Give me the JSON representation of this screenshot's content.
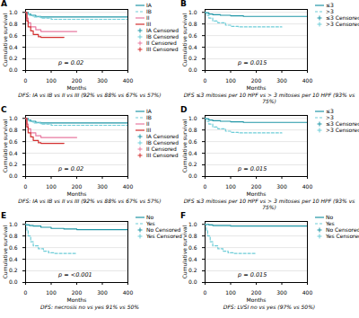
{
  "chart_data": [
    {
      "type": "line",
      "title": "A",
      "subtitle": "DFS: IA vs IB vs II vs III (92% vs 88% vs 67% vs 57%)",
      "annotations": [
        "p = 0.02"
      ],
      "xlabel": "Months",
      "ylabel": "Cumulative survival",
      "xlim": [
        0,
        400
      ],
      "ylim": [
        0,
        1.05
      ],
      "xticks": [
        0,
        100,
        200,
        300,
        400
      ],
      "yticks": [
        {
          "value": 0,
          "label": "0.0"
        },
        0.2,
        0.4,
        0.6,
        0.8,
        {
          "value": 1,
          "label": "1.0"
        }
      ],
      "grid": true,
      "legend": "upper right",
      "series": [
        {
          "name": "IA",
          "type": "step",
          "color": "#2196a6",
          "line_style": "solid",
          "x": [
            0,
            5,
            10,
            20,
            40,
            60,
            100,
            150,
            200,
            250,
            300,
            350,
            400
          ],
          "values": [
            1.0,
            1.0,
            0.97,
            0.95,
            0.93,
            0.92,
            0.92,
            0.92,
            0.92,
            0.92,
            0.92,
            0.92,
            0.92
          ]
        },
        {
          "name": "IB",
          "type": "step",
          "color": "#6ecdd8",
          "line_style": "dashed",
          "x": [
            0,
            5,
            15,
            30,
            60,
            100,
            150,
            200,
            250,
            300,
            350,
            400
          ],
          "values": [
            1.0,
            0.97,
            0.95,
            0.92,
            0.9,
            0.88,
            0.88,
            0.88,
            0.88,
            0.88,
            0.88,
            0.88
          ]
        },
        {
          "name": "II",
          "type": "step",
          "color": "#e879a0",
          "line_style": "solid",
          "x": [
            0,
            5,
            10,
            20,
            40,
            60,
            80,
            100,
            150,
            200
          ],
          "values": [
            1.0,
            0.9,
            0.82,
            0.75,
            0.7,
            0.67,
            0.67,
            0.67,
            0.67,
            0.67
          ]
        },
        {
          "name": "III",
          "type": "step",
          "color": "#d32f2f",
          "line_style": "solid",
          "x": [
            0,
            5,
            10,
            20,
            30,
            50,
            60,
            80,
            100,
            150
          ],
          "values": [
            1.0,
            0.85,
            0.75,
            0.68,
            0.62,
            0.58,
            0.57,
            0.57,
            0.57,
            0.57
          ]
        },
        {
          "name": "IA Censored",
          "type": "scatter",
          "color": "#2196a6",
          "marker": "plus",
          "x": [
            25,
            50,
            70,
            110,
            160,
            210,
            260,
            310,
            360
          ],
          "values": [
            0.95,
            0.93,
            0.92,
            0.92,
            0.92,
            0.92,
            0.92,
            0.92,
            0.92
          ]
        },
        {
          "name": "IB Censored",
          "type": "scatter",
          "color": "#6ecdd8",
          "marker": "plus",
          "x": [
            40,
            90,
            130,
            180,
            230,
            280,
            330,
            380
          ],
          "values": [
            0.92,
            0.9,
            0.88,
            0.88,
            0.88,
            0.88,
            0.88,
            0.88
          ]
        },
        {
          "name": "II Censored",
          "type": "scatter",
          "color": "#e879a0",
          "marker": "plus",
          "x": [
            55,
            120,
            180
          ],
          "values": [
            0.7,
            0.67,
            0.67
          ]
        },
        {
          "name": "III Censored",
          "type": "scatter",
          "color": "#d32f2f",
          "marker": "plus",
          "x": [
            70,
            130
          ],
          "values": [
            0.57,
            0.57
          ]
        }
      ]
    },
    {
      "type": "line",
      "title": "B",
      "subtitle": "DFS ≤3 mitoses per 10 HPF vs > 3 mitoses per 10 HPF (93% vs 75%)",
      "annotations": [
        "p = 0.015"
      ],
      "xlabel": "Months",
      "ylabel": "Cumulative survival",
      "xlim": [
        0,
        400
      ],
      "ylim": [
        0,
        1.05
      ],
      "xticks": [
        0,
        100,
        200,
        300,
        400
      ],
      "yticks": [
        {
          "value": 0,
          "label": "0.0"
        },
        0.2,
        0.4,
        0.6,
        0.8,
        {
          "value": 1,
          "label": "1.0"
        }
      ],
      "grid": true,
      "legend": "upper right",
      "series": [
        {
          "name": "≤3",
          "type": "step",
          "color": "#2196a6",
          "line_style": "solid",
          "x": [
            0,
            5,
            15,
            30,
            60,
            100,
            150,
            200,
            250,
            300,
            350,
            400
          ],
          "values": [
            1.0,
            0.99,
            0.97,
            0.96,
            0.95,
            0.94,
            0.93,
            0.93,
            0.93,
            0.93,
            0.93,
            0.93
          ]
        },
        {
          "name": ">3",
          "type": "step",
          "color": "#6ecdd8",
          "line_style": "dashed",
          "x": [
            0,
            5,
            15,
            30,
            50,
            80,
            100,
            130,
            160,
            200,
            250,
            300
          ],
          "values": [
            1.0,
            0.95,
            0.9,
            0.85,
            0.82,
            0.78,
            0.76,
            0.75,
            0.75,
            0.75,
            0.75,
            0.75
          ]
        },
        {
          "name": "≤3 Censored",
          "type": "scatter",
          "color": "#2196a6",
          "marker": "plus",
          "x": [
            40,
            80,
            130,
            180,
            230,
            290,
            350
          ],
          "values": [
            0.96,
            0.95,
            0.94,
            0.93,
            0.93,
            0.93,
            0.93
          ]
        },
        {
          "name": ">3 Censored",
          "type": "scatter",
          "color": "#6ecdd8",
          "marker": "plus",
          "x": [
            110,
            190,
            270
          ],
          "values": [
            0.76,
            0.75,
            0.75
          ]
        }
      ]
    },
    {
      "type": "line",
      "title": "C",
      "subtitle": "DFS: IA vs IB vs II vs III (92% vs 88% vs 67% vs 57%)",
      "annotations": [
        "p = 0.02"
      ],
      "xlabel": "Months",
      "ylabel": "Cumulative survival",
      "xlim": [
        0,
        400
      ],
      "ylim": [
        0,
        1.05
      ],
      "xticks": [
        0,
        100,
        200,
        300,
        400
      ],
      "yticks": [
        {
          "value": 0,
          "label": "0.0"
        },
        0.2,
        0.4,
        0.6,
        0.8,
        {
          "value": 1,
          "label": "1.0"
        }
      ],
      "grid": true,
      "legend": "upper right",
      "series": [
        {
          "name": "IA",
          "type": "step",
          "color": "#2196a6",
          "line_style": "solid",
          "x": [
            0,
            5,
            10,
            20,
            40,
            60,
            100,
            150,
            200,
            250,
            300,
            350,
            400
          ],
          "values": [
            1.0,
            1.0,
            0.97,
            0.95,
            0.93,
            0.92,
            0.92,
            0.92,
            0.92,
            0.92,
            0.92,
            0.92,
            0.92
          ]
        },
        {
          "name": "IB",
          "type": "step",
          "color": "#6ecdd8",
          "line_style": "dashed",
          "x": [
            0,
            5,
            15,
            30,
            60,
            100,
            150,
            200,
            250,
            300,
            350,
            400
          ],
          "values": [
            1.0,
            0.97,
            0.95,
            0.92,
            0.9,
            0.88,
            0.88,
            0.88,
            0.88,
            0.88,
            0.88,
            0.88
          ]
        },
        {
          "name": "II",
          "type": "step",
          "color": "#e879a0",
          "line_style": "solid",
          "x": [
            0,
            5,
            10,
            20,
            40,
            60,
            80,
            100,
            150,
            200
          ],
          "values": [
            1.0,
            0.9,
            0.82,
            0.75,
            0.7,
            0.67,
            0.67,
            0.67,
            0.67,
            0.67
          ]
        },
        {
          "name": "III",
          "type": "step",
          "color": "#d32f2f",
          "line_style": "solid",
          "x": [
            0,
            5,
            10,
            20,
            30,
            50,
            60,
            80,
            100,
            150
          ],
          "values": [
            1.0,
            0.85,
            0.75,
            0.68,
            0.62,
            0.58,
            0.57,
            0.57,
            0.57,
            0.57
          ]
        },
        {
          "name": "IA Censored",
          "type": "scatter",
          "color": "#2196a6",
          "marker": "plus",
          "x": [
            25,
            50,
            70,
            110,
            160,
            210,
            260,
            310,
            360
          ],
          "values": [
            0.95,
            0.93,
            0.92,
            0.92,
            0.92,
            0.92,
            0.92,
            0.92,
            0.92
          ]
        },
        {
          "name": "IB Censored",
          "type": "scatter",
          "color": "#6ecdd8",
          "marker": "plus",
          "x": [
            40,
            90,
            130,
            180,
            230,
            280,
            330,
            380
          ],
          "values": [
            0.92,
            0.9,
            0.88,
            0.88,
            0.88,
            0.88,
            0.88,
            0.88
          ]
        },
        {
          "name": "II Censored",
          "type": "scatter",
          "color": "#e879a0",
          "marker": "plus",
          "x": [
            55,
            120,
            180
          ],
          "values": [
            0.7,
            0.67,
            0.67
          ]
        },
        {
          "name": "III Censored",
          "type": "scatter",
          "color": "#d32f2f",
          "marker": "plus",
          "x": [
            70,
            130
          ],
          "values": [
            0.57,
            0.57
          ]
        }
      ]
    },
    {
      "type": "line",
      "title": "D",
      "subtitle": "DFS ≤3 mitoses per 10 HPF vs > 3 mitoses per 10 HPF (93% vs 75%)",
      "annotations": [
        "p = 0.015"
      ],
      "xlabel": "Months",
      "ylabel": "Cumulative survival",
      "xlim": [
        0,
        400
      ],
      "ylim": [
        0,
        1.05
      ],
      "xticks": [
        0,
        100,
        200,
        300,
        400
      ],
      "yticks": [
        {
          "value": 0,
          "label": "0.0"
        },
        0.2,
        0.4,
        0.6,
        0.8,
        {
          "value": 1,
          "label": "1.0"
        }
      ],
      "grid": true,
      "legend": "upper right",
      "series": [
        {
          "name": "≤3",
          "type": "step",
          "color": "#2196a6",
          "line_style": "solid",
          "x": [
            0,
            5,
            15,
            30,
            60,
            100,
            150,
            200,
            250,
            300,
            350,
            400
          ],
          "values": [
            1.0,
            0.99,
            0.97,
            0.96,
            0.95,
            0.94,
            0.93,
            0.93,
            0.93,
            0.93,
            0.93,
            0.93
          ]
        },
        {
          "name": ">3",
          "type": "step",
          "color": "#6ecdd8",
          "line_style": "dashed",
          "x": [
            0,
            5,
            15,
            30,
            50,
            80,
            100,
            130,
            160,
            200,
            250,
            300
          ],
          "values": [
            1.0,
            0.95,
            0.9,
            0.85,
            0.82,
            0.78,
            0.76,
            0.75,
            0.75,
            0.75,
            0.75,
            0.75
          ]
        },
        {
          "name": "≤3 Censored",
          "type": "scatter",
          "color": "#2196a6",
          "marker": "plus",
          "x": [
            40,
            80,
            130,
            180,
            230,
            290,
            350
          ],
          "values": [
            0.96,
            0.95,
            0.94,
            0.93,
            0.93,
            0.93,
            0.93
          ]
        },
        {
          "name": ">3 Censored",
          "type": "scatter",
          "color": "#6ecdd8",
          "marker": "plus",
          "x": [
            110,
            190,
            270
          ],
          "values": [
            0.76,
            0.75,
            0.75
          ]
        }
      ]
    },
    {
      "type": "line",
      "title": "E",
      "subtitle": "DFS: necrosis no vs yes 91% vs 50%",
      "annotations": [
        "p = <0.001"
      ],
      "xlabel": "Months",
      "ylabel": "Cumulative survival",
      "xlim": [
        0,
        400
      ],
      "ylim": [
        0,
        1.05
      ],
      "xticks": [
        0,
        100,
        200,
        300,
        400
      ],
      "yticks": [
        {
          "value": 0,
          "label": "0.0"
        },
        0.2,
        0.4,
        0.6,
        0.8,
        {
          "value": 1,
          "label": "1.0"
        }
      ],
      "grid": true,
      "legend": "upper right",
      "series": [
        {
          "name": "No",
          "type": "step",
          "color": "#2196a6",
          "line_style": "solid",
          "x": [
            0,
            5,
            15,
            30,
            60,
            100,
            150,
            200,
            250,
            300,
            350,
            400
          ],
          "values": [
            1.0,
            0.99,
            0.98,
            0.97,
            0.95,
            0.93,
            0.92,
            0.91,
            0.91,
            0.91,
            0.91,
            0.91
          ]
        },
        {
          "name": "Yes",
          "type": "step",
          "color": "#6ecdd8",
          "line_style": "dashed",
          "x": [
            0,
            5,
            10,
            20,
            30,
            50,
            70,
            90,
            110,
            130,
            150,
            200
          ],
          "values": [
            1.0,
            0.9,
            0.8,
            0.7,
            0.63,
            0.58,
            0.54,
            0.51,
            0.5,
            0.5,
            0.5,
            0.5
          ]
        },
        {
          "name": "No Censored",
          "type": "scatter",
          "color": "#2196a6",
          "marker": "plus",
          "x": [
            40,
            80,
            130,
            180,
            230,
            290,
            350
          ],
          "values": [
            0.97,
            0.95,
            0.93,
            0.92,
            0.91,
            0.91,
            0.91
          ]
        },
        {
          "name": "Yes Censored",
          "type": "scatter",
          "color": "#6ecdd8",
          "marker": "plus",
          "x": [
            100,
            160,
            240
          ],
          "values": [
            0.51,
            0.5,
            0.5
          ]
        }
      ]
    },
    {
      "type": "line",
      "title": "F",
      "subtitle": "DFS: LVSI no vs yes (97% vs 50%)",
      "annotations": [
        "p = 0.015"
      ],
      "xlabel": "Months",
      "ylabel": "Cumulative survival",
      "xlim": [
        0,
        400
      ],
      "ylim": [
        0,
        1.05
      ],
      "xticks": [
        0,
        100,
        200,
        300,
        400
      ],
      "yticks": [
        {
          "value": 0,
          "label": "0.0"
        },
        0.2,
        0.4,
        0.6,
        0.8,
        {
          "value": 1,
          "label": "1.0"
        }
      ],
      "grid": true,
      "legend": "upper right",
      "series": [
        {
          "name": "No",
          "type": "step",
          "color": "#2196a6",
          "line_style": "solid",
          "x": [
            0,
            5,
            15,
            30,
            60,
            100,
            150,
            200,
            250,
            300,
            350,
            400
          ],
          "values": [
            1.0,
            1.0,
            0.99,
            0.98,
            0.98,
            0.97,
            0.97,
            0.97,
            0.97,
            0.97,
            0.97,
            0.97
          ]
        },
        {
          "name": "Yes",
          "type": "step",
          "color": "#6ecdd8",
          "line_style": "dashed",
          "x": [
            0,
            5,
            10,
            20,
            30,
            50,
            70,
            90,
            110,
            130,
            150,
            200
          ],
          "values": [
            1.0,
            0.9,
            0.8,
            0.7,
            0.63,
            0.58,
            0.54,
            0.51,
            0.5,
            0.5,
            0.5,
            0.5
          ]
        },
        {
          "name": "No Censored",
          "type": "scatter",
          "color": "#2196a6",
          "marker": "plus",
          "x": [
            40,
            80,
            130,
            180,
            230,
            290,
            350
          ],
          "values": [
            0.98,
            0.98,
            0.97,
            0.97,
            0.97,
            0.97,
            0.97
          ]
        },
        {
          "name": "Yes Censored",
          "type": "scatter",
          "color": "#6ecdd8",
          "marker": "plus",
          "x": [
            100,
            160,
            240
          ],
          "values": [
            0.51,
            0.5,
            0.5
          ]
        }
      ]
    }
  ]
}
